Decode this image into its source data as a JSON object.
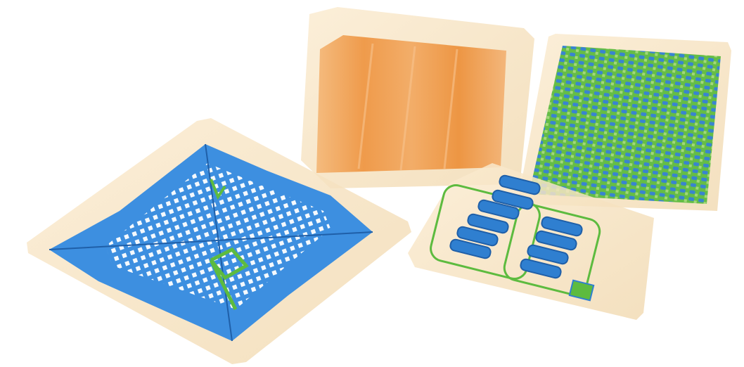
{
  "image": {
    "kind": "xray-baggage-scan",
    "objects": [
      {
        "name": "grid-tray",
        "color": "#3d8fe0"
      },
      {
        "name": "orange-box",
        "color": "#f0a050"
      },
      {
        "name": "clip-tray",
        "color": "#2f7fd0"
      },
      {
        "name": "dense-box",
        "color": "#4aa840"
      }
    ],
    "colors": {
      "background": "#ffffff",
      "shell": "#f6e3c2",
      "blue": "#3d8fe0",
      "orange": "#ef9a45",
      "green": "#5dbb3f"
    }
  }
}
